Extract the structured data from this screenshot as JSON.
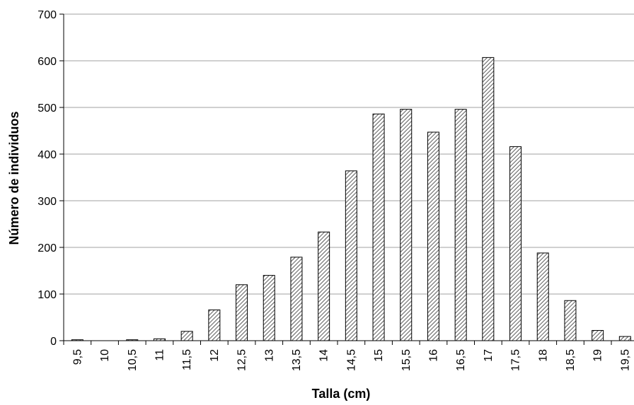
{
  "chart_data": {
    "type": "bar",
    "title": "",
    "xlabel": "Talla (cm)",
    "ylabel": "Número de individuos",
    "categories": [
      "9,5",
      "10",
      "10,5",
      "11",
      "11,5",
      "12",
      "12,5",
      "13",
      "13,5",
      "14",
      "14,5",
      "15",
      "15,5",
      "16",
      "16,5",
      "17",
      "17,5",
      "18",
      "18,5",
      "19",
      "19,5"
    ],
    "values": [
      2,
      0,
      2,
      4,
      20,
      66,
      120,
      140,
      179,
      233,
      364,
      486,
      496,
      447,
      496,
      607,
      416,
      188,
      86,
      22,
      9
    ],
    "yticks": [
      "0",
      "100",
      "200",
      "300",
      "400",
      "500",
      "600",
      "700"
    ],
    "ylim": [
      0,
      700
    ],
    "grid": true,
    "legend": "none",
    "bar_fill": "hatched",
    "colors": {
      "bar_stroke": "#000000",
      "hatch": "#333333",
      "grid": "#a0a0a0",
      "axis": "#000000"
    }
  }
}
